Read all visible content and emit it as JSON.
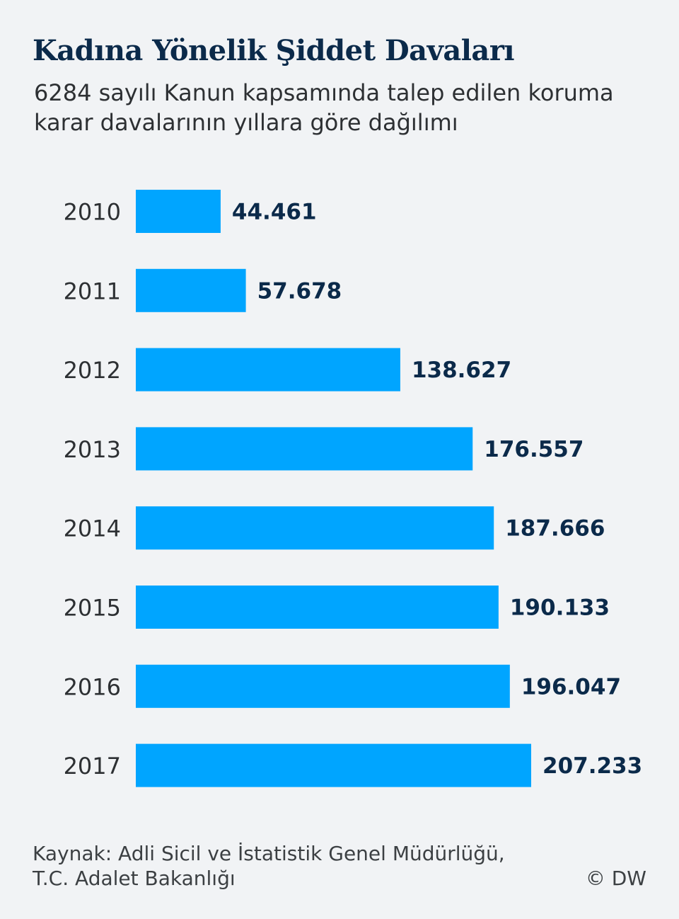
{
  "header": {
    "title": "Kadına Yönelik Şiddet Davaları",
    "subtitle": "6284 sayılı Kanun kapsamında talep edilen koruma karar davalarının yıllara göre dağılımı"
  },
  "chart_data": {
    "type": "bar",
    "orientation": "horizontal",
    "categories": [
      "2010",
      "2011",
      "2012",
      "2013",
      "2014",
      "2015",
      "2016",
      "2017"
    ],
    "values": [
      44461,
      57678,
      138627,
      176557,
      187666,
      190133,
      196047,
      207233
    ],
    "value_labels": [
      "44.461",
      "57.678",
      "138.627",
      "176.557",
      "187.666",
      "190.133",
      "196.047",
      "207.233"
    ],
    "bar_color": "#00a5ff",
    "label_color": "#0b2a4a",
    "grid": false,
    "legend": "none"
  },
  "footer": {
    "source_line1": "Kaynak: Adli Sicil ve İstatistik Genel Müdürlüğü,",
    "source_line2": "T.C. Adalet Bakanlığı",
    "copyright": "© DW"
  }
}
